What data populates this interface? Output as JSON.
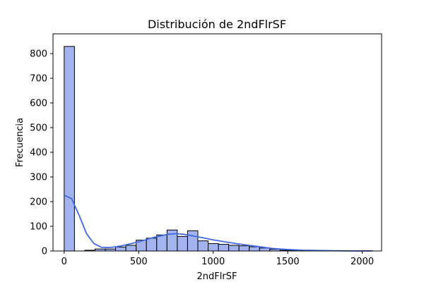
{
  "chart_data": {
    "type": "histogram",
    "title": "Distribución de 2ndFlrSF",
    "xlabel": "2ndFlrSF",
    "ylabel": "Frecuencia",
    "xlim": [
      -75,
      2130
    ],
    "ylim": [
      0,
      880
    ],
    "x_ticks": [
      0,
      500,
      1000,
      1500,
      2000
    ],
    "y_ticks": [
      0,
      100,
      200,
      300,
      400,
      500,
      600,
      700,
      800
    ],
    "bin_width": 69,
    "bins": [
      {
        "start": 0,
        "count": 829
      },
      {
        "start": 69,
        "count": 0
      },
      {
        "start": 138,
        "count": 3
      },
      {
        "start": 207,
        "count": 8
      },
      {
        "start": 276,
        "count": 8
      },
      {
        "start": 345,
        "count": 16
      },
      {
        "start": 414,
        "count": 23
      },
      {
        "start": 483,
        "count": 44
      },
      {
        "start": 552,
        "count": 52
      },
      {
        "start": 621,
        "count": 65
      },
      {
        "start": 690,
        "count": 85
      },
      {
        "start": 759,
        "count": 59
      },
      {
        "start": 828,
        "count": 82
      },
      {
        "start": 897,
        "count": 41
      },
      {
        "start": 966,
        "count": 30
      },
      {
        "start": 1035,
        "count": 27
      },
      {
        "start": 1104,
        "count": 23
      },
      {
        "start": 1173,
        "count": 21
      },
      {
        "start": 1242,
        "count": 17
      },
      {
        "start": 1311,
        "count": 12
      },
      {
        "start": 1380,
        "count": 7
      },
      {
        "start": 1449,
        "count": 3
      },
      {
        "start": 1518,
        "count": 2
      },
      {
        "start": 1587,
        "count": 1
      },
      {
        "start": 1656,
        "count": 1
      },
      {
        "start": 1725,
        "count": 1
      },
      {
        "start": 1794,
        "count": 0
      },
      {
        "start": 1863,
        "count": 0
      },
      {
        "start": 1932,
        "count": 0
      },
      {
        "start": 2001,
        "count": 1
      }
    ],
    "kde": {
      "x": [
        0,
        50,
        100,
        150,
        200,
        250,
        300,
        350,
        400,
        500,
        600,
        700,
        750,
        800,
        900,
        1000,
        1100,
        1200,
        1300,
        1400,
        1500,
        1600,
        1800,
        2000,
        2060
      ],
      "y": [
        226,
        212,
        145,
        70,
        30,
        15,
        14,
        17,
        23,
        37,
        55,
        68,
        70,
        68,
        57,
        45,
        35,
        26,
        18,
        10,
        6,
        3,
        1,
        0,
        0
      ]
    },
    "bar_fill": "#a3b3ef",
    "bar_edge": "#000000",
    "kde_color": "#4169e1",
    "grid": false,
    "legend": "none"
  }
}
